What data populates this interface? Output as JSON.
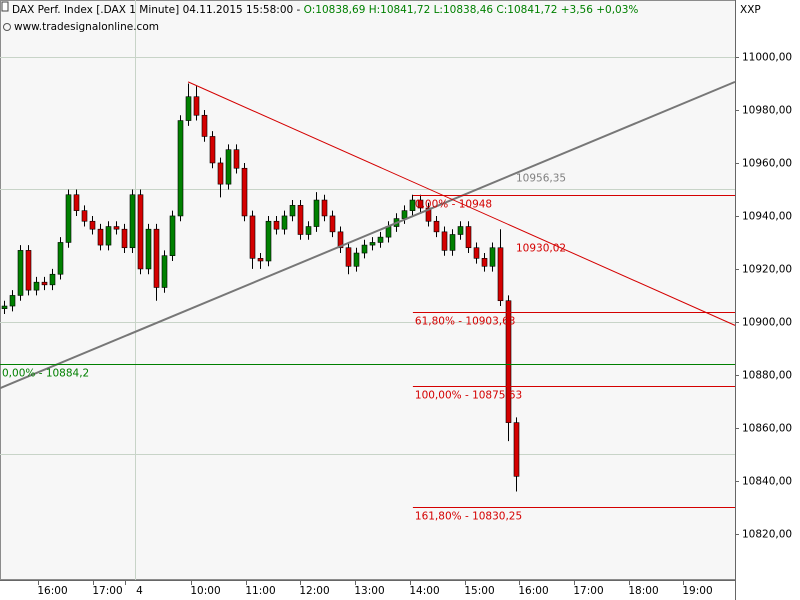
{
  "chart_data": {
    "type": "candlestick",
    "header_title": "DAX Perf. Index [.DAX  1 Minute] 04.11.2015 15:58:00 - ",
    "header_quote": "O:10838,69 H:10841,72 L:10838,46 C:10841,72 +3,56 +0,03%",
    "source": "www.tradesignalonline.com",
    "axis_label": "XXP",
    "up_color": "#008000",
    "down_color": "#d40000",
    "x": [
      15.12,
      15.27,
      15.42,
      15.56,
      15.71,
      15.85,
      16.0,
      16.15,
      16.29,
      16.44,
      16.59,
      16.73,
      16.88,
      17.02,
      17.17,
      17.32,
      17.46,
      17.61,
      17.76,
      17.9,
      18.05,
      18.19,
      18.34,
      18.49,
      18.63,
      18.78,
      18.93,
      19.07,
      19.22,
      19.36,
      19.51,
      19.66,
      19.8,
      19.95,
      20.1,
      20.24,
      20.39,
      20.53,
      20.68,
      20.83,
      20.97,
      21.12,
      21.27,
      21.41,
      21.56,
      21.7,
      21.85,
      22.0,
      22.14,
      22.29,
      22.44,
      22.58,
      22.73,
      22.87,
      23.02,
      23.17,
      23.31,
      23.46,
      23.61,
      23.75,
      23.9,
      24.04,
      24.19,
      24.34,
      24.48
    ],
    "open": [
      10905,
      10906,
      10910,
      10927,
      10912,
      10915,
      10914,
      10918,
      10930,
      10948,
      10942,
      10938,
      10935,
      10929,
      10936,
      10935,
      10928,
      10948,
      10920,
      10935,
      10913,
      10925,
      10940,
      10976,
      10985,
      10978,
      10970,
      10960,
      10952,
      10965,
      10958,
      10940,
      10924,
      10923,
      10938,
      10935,
      10940,
      10944,
      10933,
      10936,
      10946,
      10940,
      10934,
      10928,
      10921,
      10926,
      10929,
      10930,
      10932,
      10936,
      10939,
      10942,
      10946,
      10943,
      10938,
      10934,
      10927,
      10933,
      10936,
      10928,
      10924,
      10921,
      10928,
      10908,
      10862
    ],
    "high": [
      10908,
      10912,
      10929,
      10929,
      10917,
      10917,
      10920,
      10932,
      10950,
      10950,
      10944,
      10940,
      10937,
      10938,
      10938,
      10937,
      10950,
      10950,
      10937,
      10937,
      10927,
      10942,
      10978,
      10990,
      10989,
      10980,
      10972,
      10962,
      10967,
      10967,
      10960,
      10942,
      10926,
      10940,
      10940,
      10942,
      10946,
      10946,
      10938,
      10949,
      10948,
      10942,
      10936,
      10930,
      10928,
      10931,
      10932,
      10934,
      10938,
      10941,
      10944,
      10948,
      10948,
      10945,
      10940,
      10936,
      10935,
      10938,
      10938,
      10930,
      10926,
      10930,
      10935,
      10910,
      10864
    ],
    "low": [
      10903,
      10904,
      10908,
      10910,
      10910,
      10912,
      10912,
      10916,
      10928,
      10940,
      10936,
      10933,
      10927,
      10927,
      10933,
      10926,
      10926,
      10918,
      10918,
      10908,
      10911,
      10923,
      10938,
      10974,
      10976,
      10968,
      10958,
      10947,
      10950,
      10956,
      10938,
      10920,
      10920,
      10921,
      10933,
      10933,
      10938,
      10931,
      10931,
      10934,
      10938,
      10932,
      10926,
      10918,
      10919,
      10924,
      10927,
      10928,
      10930,
      10934,
      10937,
      10940,
      10941,
      10936,
      10932,
      10925,
      10925,
      10931,
      10926,
      10922,
      10919,
      10919,
      10906,
      10855,
      10836
    ],
    "close": [
      10906,
      10910,
      10927,
      10912,
      10915,
      10914,
      10918,
      10930,
      10948,
      10942,
      10938,
      10935,
      10929,
      10936,
      10935,
      10928,
      10948,
      10920,
      10935,
      10913,
      10925,
      10940,
      10976,
      10985,
      10978,
      10970,
      10960,
      10952,
      10965,
      10958,
      10940,
      10924,
      10923,
      10938,
      10935,
      10940,
      10944,
      10933,
      10936,
      10946,
      10940,
      10934,
      10928,
      10921,
      10926,
      10929,
      10930,
      10932,
      10936,
      10939,
      10942,
      10946,
      10943,
      10938,
      10934,
      10927,
      10933,
      10936,
      10928,
      10924,
      10921,
      10928,
      10908,
      10862,
      10841.72
    ],
    "xlim": [
      15.05,
      28.49
    ],
    "ylim": [
      10802.6,
      11021.5
    ],
    "yticks": [
      {
        "value": 10820,
        "label": "10820,00"
      },
      {
        "value": 10840,
        "label": "10840,00"
      },
      {
        "value": 10860,
        "label": "10860,00"
      },
      {
        "value": 10880,
        "label": "10880,00"
      },
      {
        "value": 10900,
        "label": "10900,00"
      },
      {
        "value": 10920,
        "label": "10920,00"
      },
      {
        "value": 10940,
        "label": "10940,00"
      },
      {
        "value": 10960,
        "label": "10960,00"
      },
      {
        "value": 10980,
        "label": "10980,00"
      },
      {
        "value": 11000,
        "label": "11000,00"
      }
    ],
    "ygrid": [
      10850,
      10900,
      10950,
      11000
    ],
    "xticks": [
      {
        "value": 16,
        "label": "16:00"
      },
      {
        "value": 17,
        "label": "17:00"
      },
      {
        "value": 17.6,
        "label": "4"
      },
      {
        "value": 18.8,
        "label": "10:00"
      },
      {
        "value": 19.8,
        "label": "11:00"
      },
      {
        "value": 20.8,
        "label": "12:00"
      },
      {
        "value": 21.8,
        "label": "13:00"
      },
      {
        "value": 22.8,
        "label": "14:00"
      },
      {
        "value": 23.8,
        "label": "15:00"
      },
      {
        "value": 24.8,
        "label": "16:00"
      },
      {
        "value": 25.8,
        "label": "17:00"
      },
      {
        "value": 26.8,
        "label": "18:00"
      },
      {
        "value": 27.8,
        "label": "19:00"
      }
    ],
    "xgrid": [
      17.6
    ],
    "levels": [
      {
        "value": 10948,
        "label": "0,00% - 10948",
        "color": "#d40000",
        "x": [
          22.6,
          28.49
        ]
      },
      {
        "value": 10903.63,
        "label": "61,80% - 10903,63",
        "color": "#d40000",
        "x": [
          22.6,
          28.49
        ]
      },
      {
        "value": 10884.2,
        "label": "0,00% - 10884,2",
        "color": "#008000",
        "x": [
          15.05,
          28.49
        ]
      },
      {
        "value": 10875.63,
        "label": "100,00% - 10875,63",
        "color": "#d40000",
        "x": [
          22.6,
          28.49
        ]
      },
      {
        "value": 10830.25,
        "label": "161,80% - 10830,25",
        "color": "#d40000",
        "x": [
          22.6,
          28.49
        ]
      }
    ],
    "trendlines": [
      {
        "color": "#777777",
        "x": [
          15.05,
          28.49
        ],
        "y": [
          10875,
          10990.6
        ]
      },
      {
        "color": "#d40000",
        "x": [
          18.49,
          28.49
        ],
        "y": [
          10990.6,
          10898.7
        ]
      }
    ],
    "annotations": [
      {
        "value": 10956.35,
        "label": "10956,35",
        "color": "#808080"
      },
      {
        "value": 10930.02,
        "label": "10930,02",
        "color": "#d40000"
      }
    ]
  }
}
